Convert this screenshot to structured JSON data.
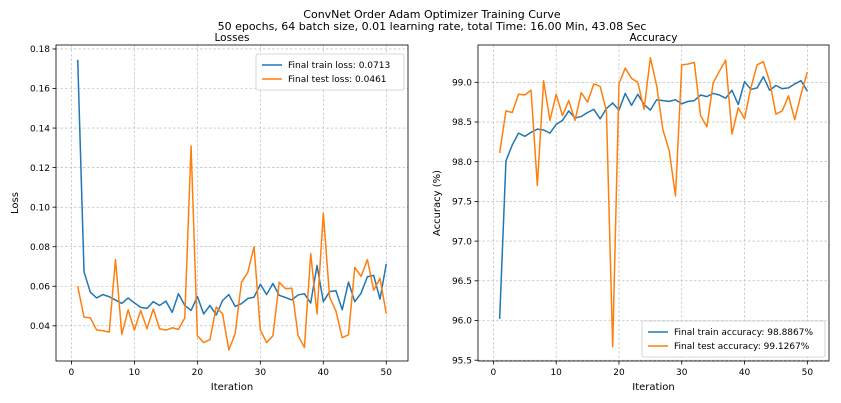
{
  "figure": {
    "title_line1": "ConvNet Order Adam Optimizer Training Curve",
    "title_line2": "50 epochs, 64 batch size,  0.01 learning rate, total Time: 16.00 Min, 43.08 Sec"
  },
  "colors": {
    "train": "#1f77b4",
    "test": "#ff7f0e"
  },
  "chart_data": [
    {
      "type": "line",
      "title": "Losses",
      "xlabel": "Iteration",
      "ylabel": "Loss",
      "xlim": [
        -2.45,
        53.45
      ],
      "ylim": [
        0.0222,
        0.182
      ],
      "xticks": [
        0,
        10,
        20,
        30,
        40,
        50
      ],
      "yticks": [
        0.04,
        0.06,
        0.08,
        0.1,
        0.12,
        0.14,
        0.16,
        0.18
      ],
      "ytick_labels": [
        "0.04",
        "0.06",
        "0.08",
        "0.10",
        "0.12",
        "0.14",
        "0.16",
        "0.18"
      ],
      "grid": true,
      "legend_position": "top-right",
      "x": [
        1,
        2,
        3,
        4,
        5,
        6,
        7,
        8,
        9,
        10,
        11,
        12,
        13,
        14,
        15,
        16,
        17,
        18,
        19,
        20,
        21,
        22,
        23,
        24,
        25,
        26,
        27,
        28,
        29,
        30,
        31,
        32,
        33,
        34,
        35,
        36,
        37,
        38,
        39,
        40,
        41,
        42,
        43,
        44,
        45,
        46,
        47,
        48,
        49,
        50
      ],
      "series": [
        {
          "name": "Final train loss: 0.0713",
          "color_key": "train",
          "values": [
            0.1745,
            0.0673,
            0.057,
            0.0541,
            0.0558,
            0.0547,
            0.053,
            0.0513,
            0.0541,
            0.0516,
            0.0493,
            0.0488,
            0.0522,
            0.0503,
            0.0525,
            0.0468,
            0.0562,
            0.0503,
            0.0478,
            0.0548,
            0.046,
            0.0503,
            0.0455,
            0.0528,
            0.0558,
            0.0498,
            0.0512,
            0.0538,
            0.0545,
            0.061,
            0.0558,
            0.0614,
            0.0554,
            0.0543,
            0.0531,
            0.0556,
            0.0562,
            0.0515,
            0.0705,
            0.0522,
            0.0573,
            0.0578,
            0.0481,
            0.0621,
            0.0522,
            0.0565,
            0.0648,
            0.0655,
            0.0535,
            0.0713
          ]
        },
        {
          "name": "Final test loss: 0.0461",
          "color_key": "test",
          "values": [
            0.06,
            0.0444,
            0.044,
            0.0379,
            0.0375,
            0.0368,
            0.0735,
            0.0357,
            0.048,
            0.0378,
            0.0478,
            0.0385,
            0.0485,
            0.0385,
            0.0378,
            0.039,
            0.0382,
            0.044,
            0.131,
            0.035,
            0.0315,
            0.033,
            0.0495,
            0.046,
            0.0278,
            0.036,
            0.062,
            0.067,
            0.08,
            0.0378,
            0.0315,
            0.035,
            0.062,
            0.0588,
            0.059,
            0.035,
            0.029,
            0.0765,
            0.046,
            0.097,
            0.0545,
            0.0475,
            0.034,
            0.0355,
            0.0695,
            0.065,
            0.0735,
            0.058,
            0.064,
            0.0461
          ]
        }
      ]
    },
    {
      "type": "line",
      "title": "Accuracy",
      "xlabel": "Iteration",
      "ylabel": "Accuracy (%)",
      "xlim": [
        -2.45,
        53.45
      ],
      "ylim": [
        95.49,
        99.47
      ],
      "xticks": [
        0,
        10,
        20,
        30,
        40,
        50
      ],
      "yticks": [
        95.5,
        96.0,
        96.5,
        97.0,
        97.5,
        98.0,
        98.5,
        99.0
      ],
      "ytick_labels": [
        "95.5",
        "96.0",
        "96.5",
        "97.0",
        "97.5",
        "98.0",
        "98.5",
        "99.0"
      ],
      "grid": true,
      "legend_position": "bottom-right",
      "x": [
        1,
        2,
        3,
        4,
        5,
        6,
        7,
        8,
        9,
        10,
        11,
        12,
        13,
        14,
        15,
        16,
        17,
        18,
        19,
        20,
        21,
        22,
        23,
        24,
        25,
        26,
        27,
        28,
        29,
        30,
        31,
        32,
        33,
        34,
        35,
        36,
        37,
        38,
        39,
        40,
        41,
        42,
        43,
        44,
        45,
        46,
        47,
        48,
        49,
        50
      ],
      "series": [
        {
          "name": "Final train accuracy: 98.8867%",
          "color_key": "train",
          "values": [
            96.02,
            98.01,
            98.21,
            98.36,
            98.32,
            98.37,
            98.41,
            98.4,
            98.36,
            98.47,
            98.52,
            98.64,
            98.55,
            98.57,
            98.62,
            98.66,
            98.54,
            98.67,
            98.74,
            98.65,
            98.86,
            98.71,
            98.85,
            98.72,
            98.65,
            98.78,
            98.77,
            98.76,
            98.78,
            98.73,
            98.76,
            98.77,
            98.84,
            98.82,
            98.86,
            98.84,
            98.8,
            98.9,
            98.72,
            99.01,
            98.91,
            98.93,
            99.07,
            98.9,
            98.96,
            98.92,
            98.93,
            98.98,
            99.02,
            98.89
          ]
        },
        {
          "name": "Final test accuracy: 99.1267%",
          "color_key": "test",
          "values": [
            98.11,
            98.64,
            98.62,
            98.85,
            98.84,
            98.9,
            97.7,
            99.02,
            98.52,
            98.85,
            98.58,
            98.77,
            98.52,
            98.87,
            98.75,
            98.98,
            98.95,
            98.64,
            95.67,
            98.98,
            99.18,
            99.05,
            99.0,
            98.66,
            99.31,
            98.96,
            98.4,
            98.14,
            97.57,
            99.22,
            99.23,
            99.25,
            98.58,
            98.44,
            98.99,
            99.14,
            99.28,
            98.35,
            98.68,
            98.54,
            98.93,
            99.22,
            99.26,
            99.01,
            98.6,
            98.64,
            98.83,
            98.53,
            98.85,
            99.13
          ]
        }
      ]
    }
  ]
}
